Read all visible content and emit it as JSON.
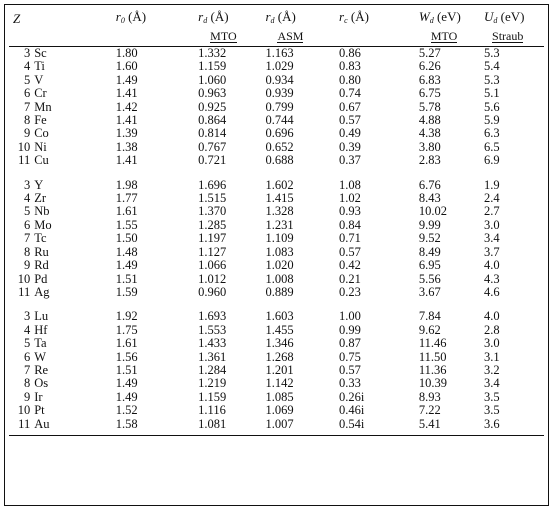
{
  "headers": {
    "z": "Z",
    "r0": {
      "sym": "r",
      "sub": "0",
      "unit": "(Å)"
    },
    "rd_mto": {
      "sym": "r",
      "sub": "d",
      "unit": "(Å)",
      "method": "MTO"
    },
    "rd_asm": {
      "sym": "r",
      "sub": "d",
      "unit": "(Å)",
      "method": "ASM"
    },
    "rc": {
      "sym": "r",
      "sub": "c",
      "unit": "(Å)"
    },
    "wd": {
      "sym": "W",
      "sub": "d",
      "unit": "(eV)",
      "method": "MTO"
    },
    "ud": {
      "sym": "U",
      "sub": "d",
      "unit": "(eV)",
      "method": "Straub"
    }
  },
  "groups": [
    {
      "rows": [
        {
          "z": "3",
          "el": "Sc",
          "r0": "1.80",
          "rd_mto": "1.332",
          "rd_asm": "1.163",
          "rc": "0.86",
          "wd": "5.27",
          "ud": "5.3"
        },
        {
          "z": "4",
          "el": "Ti",
          "r0": "1.60",
          "rd_mto": "1.159",
          "rd_asm": "1.029",
          "rc": "0.83",
          "wd": "6.26",
          "ud": "5.4"
        },
        {
          "z": "5",
          "el": "V",
          "r0": "1.49",
          "rd_mto": "1.060",
          "rd_asm": "0.934",
          "rc": "0.80",
          "wd": "6.83",
          "ud": "5.3"
        },
        {
          "z": "6",
          "el": "Cr",
          "r0": "1.41",
          "rd_mto": "0.963",
          "rd_asm": "0.939",
          "rc": "0.74",
          "wd": "6.75",
          "ud": "5.1"
        },
        {
          "z": "7",
          "el": "Mn",
          "r0": "1.42",
          "rd_mto": "0.925",
          "rd_asm": "0.799",
          "rc": "0.67",
          "wd": "5.78",
          "ud": "5.6"
        },
        {
          "z": "8",
          "el": "Fe",
          "r0": "1.41",
          "rd_mto": "0.864",
          "rd_asm": "0.744",
          "rc": "0.57",
          "wd": "4.88",
          "ud": "5.9"
        },
        {
          "z": "9",
          "el": "Co",
          "r0": "1.39",
          "rd_mto": "0.814",
          "rd_asm": "0.696",
          "rc": "0.49",
          "wd": "4.38",
          "ud": "6.3"
        },
        {
          "z": "10",
          "el": "Ni",
          "r0": "1.38",
          "rd_mto": "0.767",
          "rd_asm": "0.652",
          "rc": "0.39",
          "wd": "3.80",
          "ud": "6.5"
        },
        {
          "z": "11",
          "el": "Cu",
          "r0": "1.41",
          "rd_mto": "0.721",
          "rd_asm": "0.688",
          "rc": "0.37",
          "wd": "2.83",
          "ud": "6.9"
        }
      ]
    },
    {
      "rows": [
        {
          "z": "3",
          "el": "Y",
          "r0": "1.98",
          "rd_mto": "1.696",
          "rd_asm": "1.602",
          "rc": "1.08",
          "wd": "6.76",
          "ud": "1.9"
        },
        {
          "z": "4",
          "el": "Zr",
          "r0": "1.77",
          "rd_mto": "1.515",
          "rd_asm": "1.415",
          "rc": "1.02",
          "wd": "8.43",
          "ud": "2.4"
        },
        {
          "z": "5",
          "el": "Nb",
          "r0": "1.61",
          "rd_mto": "1.370",
          "rd_asm": "1.328",
          "rc": "0.93",
          "wd": "10.02",
          "ud": "2.7"
        },
        {
          "z": "6",
          "el": "Mo",
          "r0": "1.55",
          "rd_mto": "1.285",
          "rd_asm": "1.231",
          "rc": "0.84",
          "wd": "9.99",
          "ud": "3.0"
        },
        {
          "z": "7",
          "el": "Tc",
          "r0": "1.50",
          "rd_mto": "1.197",
          "rd_asm": "1.109",
          "rc": "0.71",
          "wd": "9.52",
          "ud": "3.4"
        },
        {
          "z": "8",
          "el": "Ru",
          "r0": "1.48",
          "rd_mto": "1.127",
          "rd_asm": "1.083",
          "rc": "0.57",
          "wd": "8.49",
          "ud": "3.7"
        },
        {
          "z": "9",
          "el": "Rd",
          "r0": "1.49",
          "rd_mto": "1.066",
          "rd_asm": "1.020",
          "rc": "0.42",
          "wd": "6.95",
          "ud": "4.0"
        },
        {
          "z": "10",
          "el": "Pd",
          "r0": "1.51",
          "rd_mto": "1.012",
          "rd_asm": "1.008",
          "rc": "0.21",
          "wd": "5.56",
          "ud": "4.3"
        },
        {
          "z": "11",
          "el": "Ag",
          "r0": "1.59",
          "rd_mto": "0.960",
          "rd_asm": "0.889",
          "rc": "0.23",
          "wd": "3.67",
          "ud": "4.6"
        }
      ]
    },
    {
      "rows": [
        {
          "z": "3",
          "el": "Lu",
          "r0": "1.92",
          "rd_mto": "1.693",
          "rd_asm": "1.603",
          "rc": "1.00",
          "wd": "7.84",
          "ud": "4.0"
        },
        {
          "z": "4",
          "el": "Hf",
          "r0": "1.75",
          "rd_mto": "1.553",
          "rd_asm": "1.455",
          "rc": "0.99",
          "wd": "9.62",
          "ud": "2.8"
        },
        {
          "z": "5",
          "el": "Ta",
          "r0": "1.61",
          "rd_mto": "1.433",
          "rd_asm": "1.346",
          "rc": "0.87",
          "wd": "11.46",
          "ud": "3.0"
        },
        {
          "z": "6",
          "el": "W",
          "r0": "1.56",
          "rd_mto": "1.361",
          "rd_asm": "1.268",
          "rc": "0.75",
          "wd": "11.50",
          "ud": "3.1"
        },
        {
          "z": "7",
          "el": "Re",
          "r0": "1.51",
          "rd_mto": "1.284",
          "rd_asm": "1.201",
          "rc": "0.57",
          "wd": "11.36",
          "ud": "3.2"
        },
        {
          "z": "8",
          "el": "Os",
          "r0": "1.49",
          "rd_mto": "1.219",
          "rd_asm": "1.142",
          "rc": "0.33",
          "wd": "10.39",
          "ud": "3.4"
        },
        {
          "z": "9",
          "el": "Ir",
          "r0": "1.49",
          "rd_mto": "1.159",
          "rd_asm": "1.085",
          "rc": "0.26i",
          "wd": "8.93",
          "ud": "3.5"
        },
        {
          "z": "10",
          "el": "Pt",
          "r0": "1.52",
          "rd_mto": "1.116",
          "rd_asm": "1.069",
          "rc": "0.46i",
          "wd": "7.22",
          "ud": "3.5"
        },
        {
          "z": "11",
          "el": "Au",
          "r0": "1.58",
          "rd_mto": "1.081",
          "rd_asm": "1.007",
          "rc": "0.54i",
          "wd": "5.41",
          "ud": "3.6"
        }
      ]
    }
  ]
}
